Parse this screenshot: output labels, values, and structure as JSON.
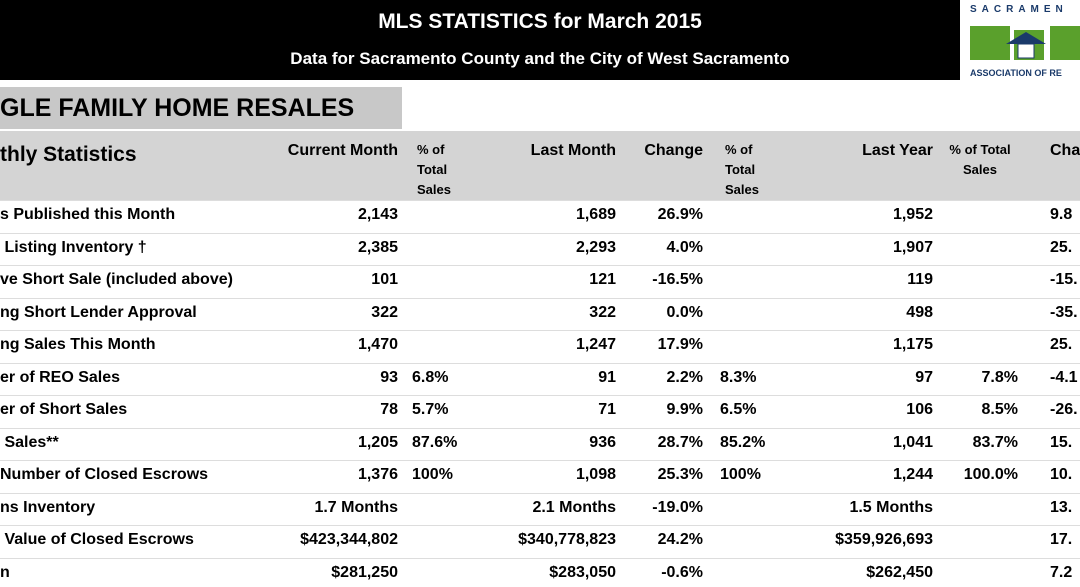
{
  "header": {
    "title": "MLS STATISTICS for March 2015",
    "subtitle": "Data for Sacramento County and the City of West Sacramento",
    "logo_top": "SACRAMEN",
    "logo_bottom": "ASSOCIATION OF RE"
  },
  "section": "GLE FAMILY HOME RESALES",
  "table": {
    "columns": [
      "thly Statistics",
      "Current Month",
      "% of Total Sales",
      "Last Month",
      "Change",
      "% of Total Sales",
      "Last Year",
      "% of  Total Sales",
      "Cha"
    ],
    "rows": [
      [
        "s Published this Month",
        "2,143",
        null,
        "1,689",
        "26.9%",
        null,
        "1,952",
        null,
        "9.8"
      ],
      [
        " Listing Inventory †",
        "2,385",
        null,
        "2,293",
        "4.0%",
        null,
        "1,907",
        null,
        "25."
      ],
      [
        "ve Short Sale (included above)",
        "101",
        null,
        "121",
        "-16.5%",
        null,
        "119",
        null,
        "-15."
      ],
      [
        "ng Short Lender Approval",
        "322",
        null,
        "322",
        "0.0%",
        null,
        "498",
        null,
        "-35."
      ],
      [
        "ng Sales This Month",
        "1,470",
        null,
        "1,247",
        "17.9%",
        null,
        "1,175",
        null,
        "25."
      ],
      [
        "er of REO Sales",
        "93",
        "6.8%",
        "91",
        "2.2%",
        "8.3%",
        "97",
        "7.8%",
        "-4.1"
      ],
      [
        "er of Short Sales",
        "78",
        "5.7%",
        "71",
        "9.9%",
        "6.5%",
        "106",
        "8.5%",
        "-26."
      ],
      [
        " Sales**",
        "1,205",
        "87.6%",
        "936",
        "28.7%",
        "85.2%",
        "1,041",
        "83.7%",
        "15."
      ],
      [
        "Number of Closed Escrows",
        "1,376",
        "100%",
        "1,098",
        "25.3%",
        "100%",
        "1,244",
        "100.0%",
        "10."
      ],
      [
        "ns Inventory",
        "1.7 Months",
        null,
        "2.1 Months",
        "-19.0%",
        null,
        "1.5 Months",
        null,
        "13."
      ],
      [
        " Value of Closed Escrows",
        "$423,344,802",
        null,
        "$340,778,823",
        "24.2%",
        null,
        "$359,926,693",
        null,
        "17."
      ],
      [
        "n",
        "$281,250",
        null,
        "$283,050",
        "-0.6%",
        null,
        "$262,450",
        null,
        "7.2"
      ]
    ]
  }
}
